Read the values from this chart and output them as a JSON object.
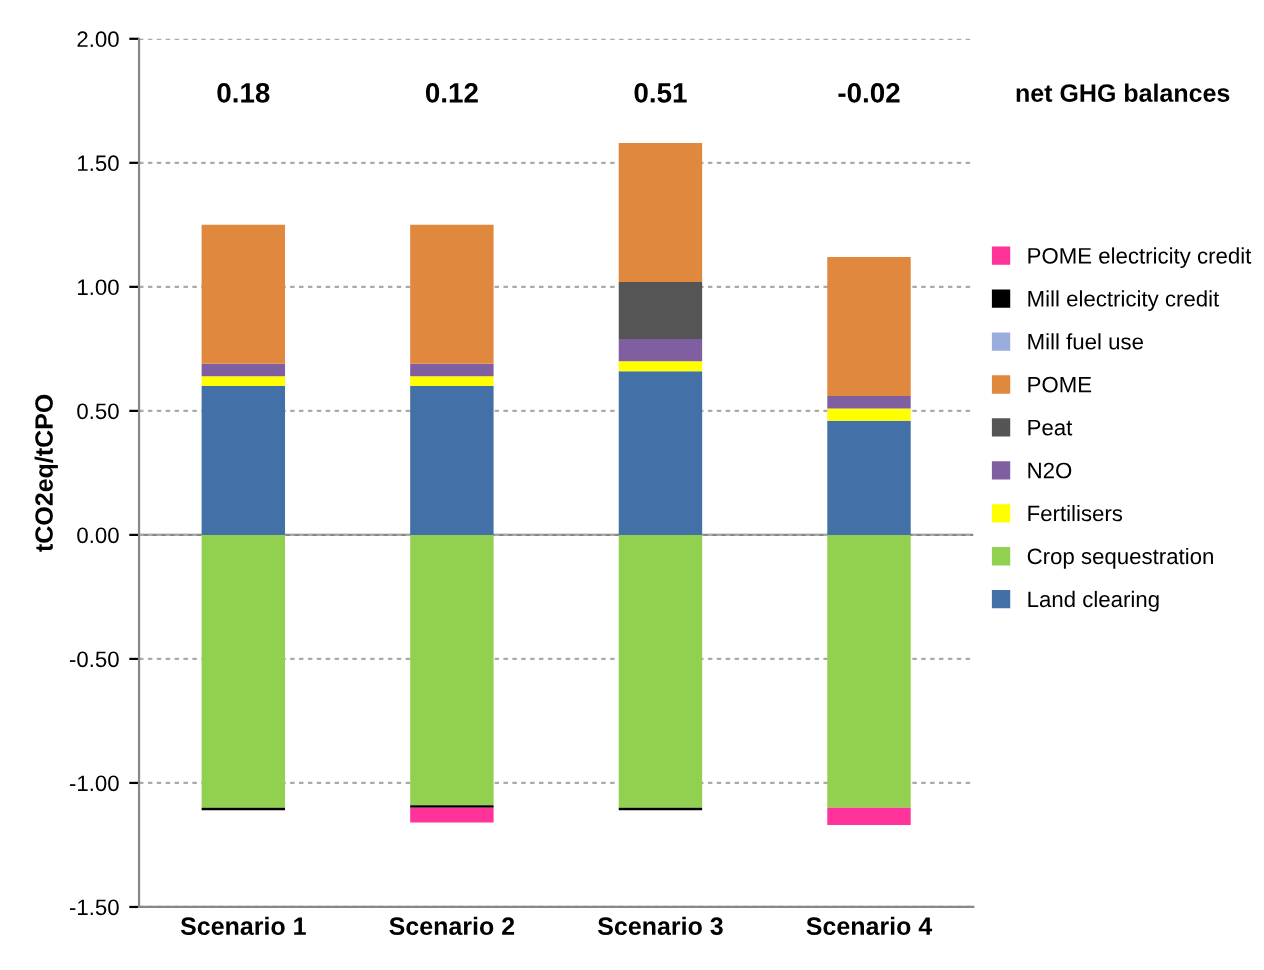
{
  "chart_data": {
    "type": "bar",
    "stacked": true,
    "ylabel": "tCO2eq/tCPO",
    "categories": [
      "Scenario 1",
      "Scenario 2",
      "Scenario 3",
      "Scenario 4"
    ],
    "series": [
      {
        "name": "Land clearing",
        "color": "#4470a8",
        "values": [
          0.6,
          0.6,
          0.66,
          0.46
        ]
      },
      {
        "name": "Crop sequestration",
        "color": "#92d050",
        "values": [
          -1.1,
          -1.09,
          -1.1,
          -1.1
        ]
      },
      {
        "name": "Fertilisers",
        "color": "#ffff00",
        "values": [
          0.04,
          0.04,
          0.04,
          0.05
        ]
      },
      {
        "name": "N2O",
        "color": "#7f5f9f",
        "values": [
          0.05,
          0.05,
          0.09,
          0.05
        ]
      },
      {
        "name": "Peat",
        "color": "#555555",
        "values": [
          null,
          null,
          0.23,
          null
        ]
      },
      {
        "name": "POME",
        "color": "#e0883e",
        "values": [
          0.56,
          0.56,
          0.56,
          0.56
        ]
      },
      {
        "name": "Mill fuel use",
        "color": "#99aedc",
        "values": [
          null,
          null,
          null,
          null
        ]
      },
      {
        "name": "Mill electricity credit",
        "color": "#000000",
        "values": [
          -0.01,
          -0.01,
          -0.01,
          null
        ]
      },
      {
        "name": "POME electricity credit",
        "color": "#ff3399",
        "values": [
          null,
          -0.06,
          null,
          -0.07
        ]
      }
    ],
    "annotations": [
      "0.18",
      "0.12",
      "0.51",
      "-0.02",
      "net GHG balances"
    ],
    "ylim": [
      -1.5,
      2
    ],
    "yticks": [
      {
        "value": -1.5,
        "label": "-1.50"
      },
      {
        "value": -1,
        "label": "-1.00"
      },
      {
        "value": -0.5,
        "label": "-0.50"
      },
      {
        "value": 0,
        "label": "0.00"
      },
      {
        "value": 0.5,
        "label": "0.50"
      },
      {
        "value": 1,
        "label": "1.00"
      },
      {
        "value": 1.5,
        "label": "1.50"
      },
      {
        "value": 2,
        "label": "2.00"
      }
    ],
    "grid": "y",
    "legend": "right"
  }
}
